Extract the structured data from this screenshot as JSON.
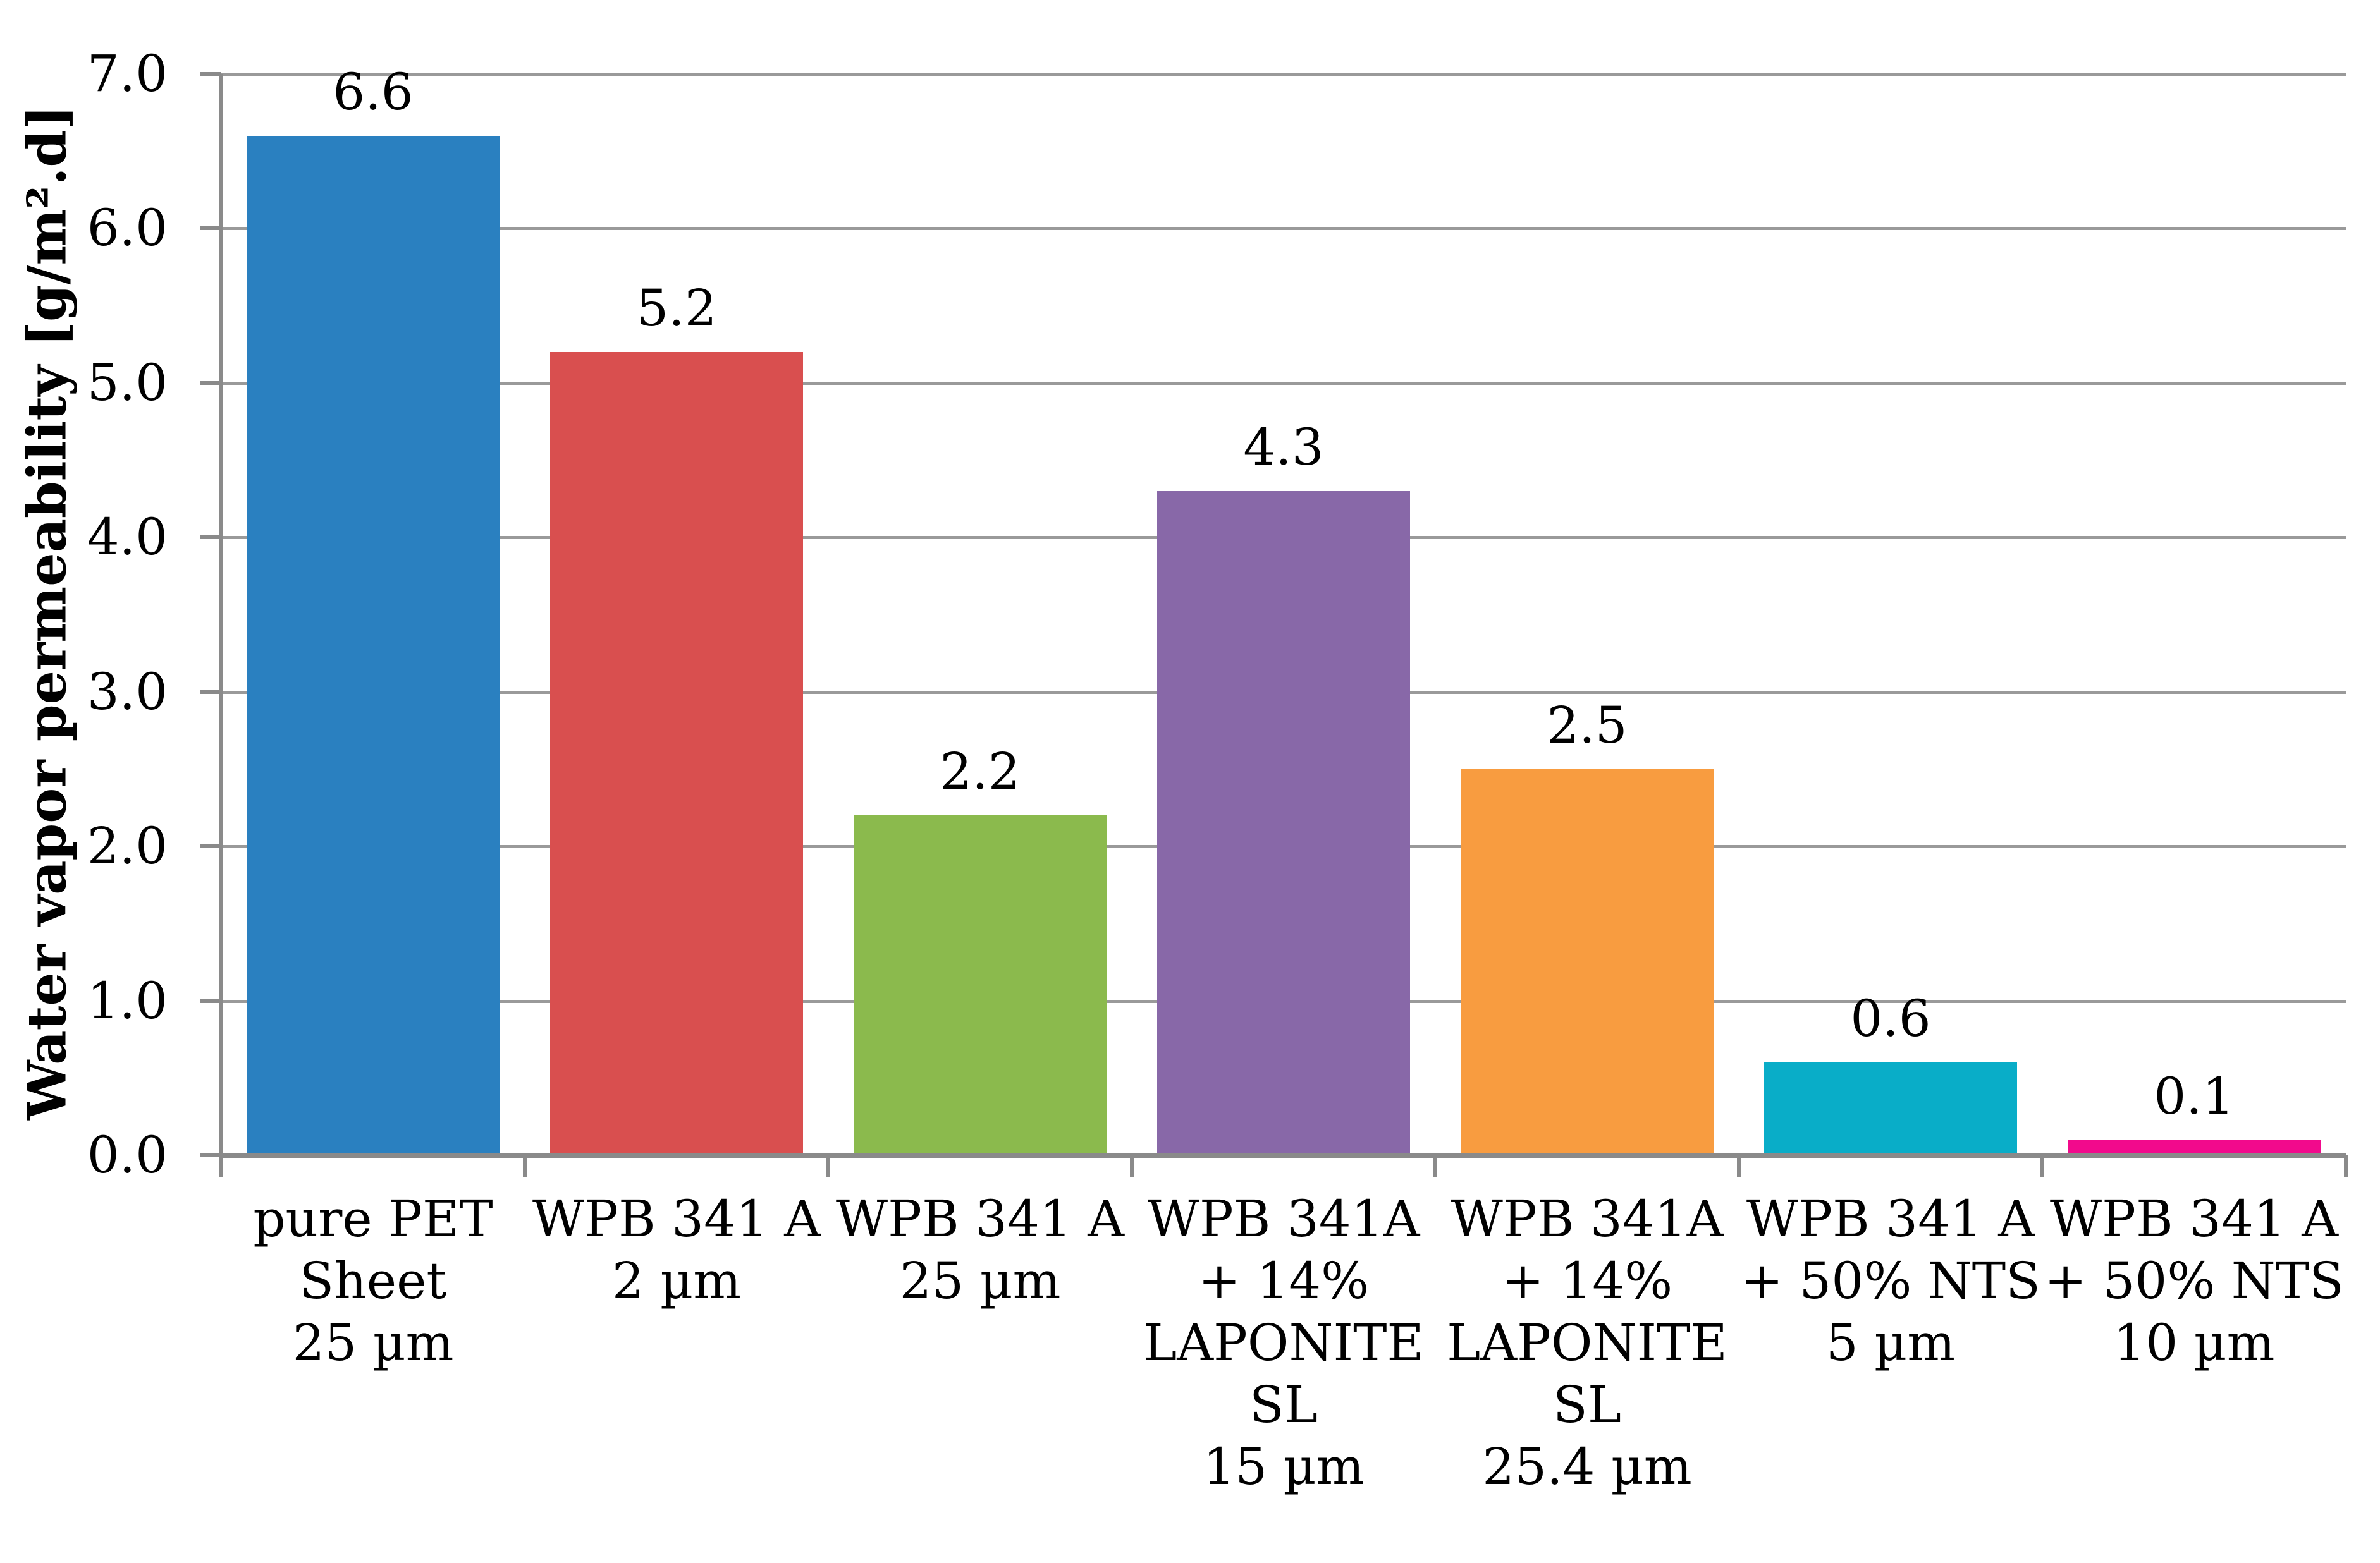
{
  "chart_data": {
    "type": "bar",
    "title": "",
    "xlabel": "",
    "ylabel": "Water vapor permeability [g/m².d]",
    "ylim": [
      0.0,
      7.0
    ],
    "ytick_interval": 1.0,
    "ytick_labels": [
      "7.0",
      "6.0",
      "5.0",
      "4.0",
      "3.0",
      "2.0",
      "1.0",
      "0.0"
    ],
    "grid": true,
    "legend": false,
    "categories": [
      [
        "pure PET",
        "Sheet",
        "25 µm"
      ],
      [
        "WPB 341 A",
        "2 µm"
      ],
      [
        "WPB 341 A",
        "25 µm"
      ],
      [
        "WPB 341A",
        "+ 14%",
        "LAPONITE",
        "SL",
        "15 µm"
      ],
      [
        "WPB 341A",
        "+ 14%",
        "LAPONITE",
        "SL",
        "25.4 µm"
      ],
      [
        "WPB 341 A",
        "+ 50% NTS",
        "5 µm"
      ],
      [
        "WPB 341 A",
        "+ 50% NTS",
        "10 µm"
      ]
    ],
    "values": [
      6.6,
      5.2,
      2.2,
      4.3,
      2.5,
      0.6,
      0.1
    ],
    "value_labels": [
      "6.6",
      "5.2",
      "2.2",
      "4.3",
      "2.5",
      "0.6",
      "0.1"
    ],
    "bar_colors": [
      "#2A80C0",
      "#D94F4F",
      "#8BBA4D",
      "#8868A8",
      "#F89C40",
      "#09ADC8",
      "#F20A8C"
    ],
    "axis_color": "#8A8A8A",
    "grid_color": "#9A9A9A",
    "text_color": "#000000",
    "background": "#FFFFFF"
  }
}
